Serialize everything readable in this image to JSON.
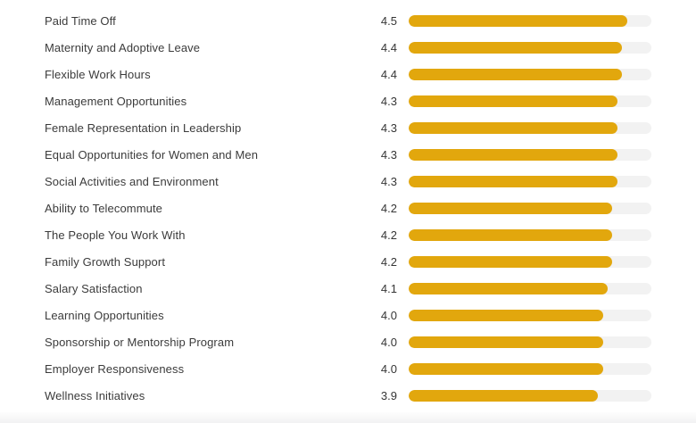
{
  "colors": {
    "bar_fill": "#E2A70D",
    "bar_track": "#F2F2F2",
    "label_text": "#3B3B3B",
    "value_text": "#363636",
    "background": "#FFFFFF"
  },
  "chart_data": {
    "type": "bar",
    "orientation": "horizontal",
    "title": "",
    "xlabel": "",
    "ylabel": "",
    "scale_max": 5,
    "xlim": [
      0,
      5
    ],
    "grid": false,
    "legend": false,
    "categories": [
      "Paid Time Off",
      "Maternity and Adoptive Leave",
      "Flexible Work Hours",
      "Management Opportunities",
      "Female Representation in Leadership",
      "Equal Opportunities for Women and Men",
      "Social Activities and Environment",
      "Ability to Telecommute",
      "The People You Work With",
      "Family Growth Support",
      "Salary Satisfaction",
      "Learning Opportunities",
      "Sponsorship or Mentorship Program",
      "Employer Responsiveness",
      "Wellness Initiatives"
    ],
    "values": [
      4.5,
      4.4,
      4.4,
      4.3,
      4.3,
      4.3,
      4.3,
      4.2,
      4.2,
      4.2,
      4.1,
      4.0,
      4.0,
      4.0,
      3.9
    ],
    "value_labels": [
      "4.5",
      "4.4",
      "4.4",
      "4.3",
      "4.3",
      "4.3",
      "4.3",
      "4.2",
      "4.2",
      "4.2",
      "4.1",
      "4.0",
      "4.0",
      "4.0",
      "3.9"
    ]
  }
}
